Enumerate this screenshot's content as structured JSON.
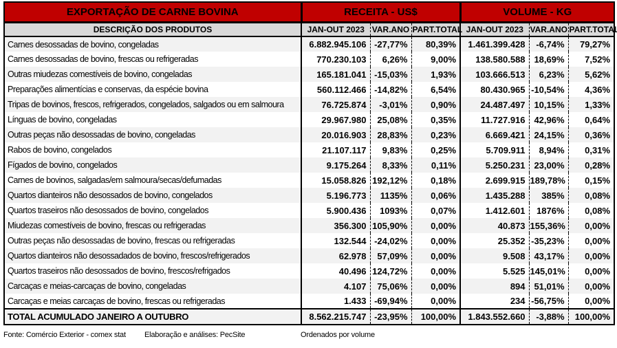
{
  "colors": {
    "header_red": "#C00000",
    "subheader_gray": "#D9D9D9",
    "stripe_gray": "#F2F2F2",
    "border_black": "#000000"
  },
  "header": {
    "title": "EXPORTAÇÃO DE CARNE BOVINA",
    "receita_group": "RECEITA - US$",
    "volume_group": "VOLUME - KG",
    "col_desc": "DESCRIÇÃO DOS PRODUTOS",
    "col_period": "JAN-OUT 2023",
    "col_var": "VAR.ANO",
    "col_part": "PART.TOTAL"
  },
  "rows": [
    {
      "desc": "Carnes desossadas de bovino, congeladas",
      "r_value": "6.882.945.106",
      "r_var": "-27,77%",
      "r_part": "80,39%",
      "v_value": "1.461.399.428",
      "v_var": "-6,74%",
      "v_part": "79,27%"
    },
    {
      "desc": "Carnes desossadas de bovino, frescas ou refrigeradas",
      "r_value": "770.230.103",
      "r_var": "6,26%",
      "r_part": "9,00%",
      "v_value": "138.580.588",
      "v_var": "18,69%",
      "v_part": "7,52%"
    },
    {
      "desc": "Outras miudezas comestíveis de bovino, congeladas",
      "r_value": "165.181.041",
      "r_var": "-15,03%",
      "r_part": "1,93%",
      "v_value": "103.666.513",
      "v_var": "6,23%",
      "v_part": "5,62%"
    },
    {
      "desc": "Preparações alimentícias e conservas, da espécie bovina",
      "r_value": "560.112.466",
      "r_var": "-14,82%",
      "r_part": "6,54%",
      "v_value": "80.430.965",
      "v_var": "-10,54%",
      "v_part": "4,36%"
    },
    {
      "desc": "Tripas de bovinos, frescos, refrigerados, congelados, salgados ou em salmoura",
      "r_value": "76.725.874",
      "r_var": "-3,01%",
      "r_part": "0,90%",
      "v_value": "24.487.497",
      "v_var": "10,15%",
      "v_part": "1,33%"
    },
    {
      "desc": "Línguas de bovino, congeladas",
      "r_value": "29.967.980",
      "r_var": "25,08%",
      "r_part": "0,35%",
      "v_value": "11.727.916",
      "v_var": "42,96%",
      "v_part": "0,64%"
    },
    {
      "desc": "Outras peças não desossadas de bovino, congeladas",
      "r_value": "20.016.903",
      "r_var": "28,83%",
      "r_part": "0,23%",
      "v_value": "6.669.421",
      "v_var": "24,15%",
      "v_part": "0,36%"
    },
    {
      "desc": "Rabos de bovino, congelados",
      "r_value": "21.107.117",
      "r_var": "9,83%",
      "r_part": "0,25%",
      "v_value": "5.709.911",
      "v_var": "8,94%",
      "v_part": "0,31%"
    },
    {
      "desc": "Fígados de bovino, congelados",
      "r_value": "9.175.264",
      "r_var": "8,33%",
      "r_part": "0,11%",
      "v_value": "5.250.231",
      "v_var": "23,00%",
      "v_part": "0,28%"
    },
    {
      "desc": "Carnes de bovinos, salgadas/em salmoura/secas/defumadas",
      "r_value": "15.058.826",
      "r_var": "192,12%",
      "r_part": "0,18%",
      "v_value": "2.699.915",
      "v_var": "189,78%",
      "v_part": "0,15%"
    },
    {
      "desc": "Quartos dianteiros não desossados de bovino, congelados",
      "r_value": "5.196.773",
      "r_var": "1135%",
      "r_part": "0,06%",
      "v_value": "1.435.288",
      "v_var": "385%",
      "v_part": "0,08%"
    },
    {
      "desc": "Quartos traseiros não desossados de bovino, congelados",
      "r_value": "5.900.436",
      "r_var": "1093%",
      "r_part": "0,07%",
      "v_value": "1.412.601",
      "v_var": "1876%",
      "v_part": "0,08%"
    },
    {
      "desc": "Miudezas comestíveis de bovino, frescas ou refrigeradas",
      "r_value": "356.300",
      "r_var": "105,90%",
      "r_part": "0,00%",
      "v_value": "40.873",
      "v_var": "155,36%",
      "v_part": "0,00%"
    },
    {
      "desc": "Outras peças não desossadas de bovino, frescas ou refrigeradas",
      "r_value": "132.544",
      "r_var": "-24,02%",
      "r_part": "0,00%",
      "v_value": "25.352",
      "v_var": "-35,23%",
      "v_part": "0,00%"
    },
    {
      "desc": "Quartos dianteiros não desossadados de bovino, frescos/refrigerados",
      "r_value": "62.978",
      "r_var": "57,09%",
      "r_part": "0,00%",
      "v_value": "9.508",
      "v_var": "43,17%",
      "v_part": "0,00%"
    },
    {
      "desc": "Quartos traseiros não desossados de bovino, frescos/refrigados",
      "r_value": "40.496",
      "r_var": "124,72%",
      "r_part": "0,00%",
      "v_value": "5.525",
      "v_var": "145,01%",
      "v_part": "0,00%"
    },
    {
      "desc": "Carcaças e meias-carcaças de bovino, congeladas",
      "r_value": "4.107",
      "r_var": "75,06%",
      "r_part": "0,00%",
      "v_value": "894",
      "v_var": "51,01%",
      "v_part": "0,00%"
    },
    {
      "desc": "Carcaças e meias carcaças de bovino, frescas ou refrigeradas",
      "r_value": "1.433",
      "r_var": "-69,94%",
      "r_part": "0,00%",
      "v_value": "234",
      "v_var": "-56,75%",
      "v_part": "0,00%"
    }
  ],
  "total": {
    "label": "TOTAL ACUMULADO JANEIRO A OUTUBRO",
    "r_value": "8.562.215.747",
    "r_var": "-23,95%",
    "r_part": "100,00%",
    "v_value": "1.843.552.660",
    "v_var": "-3,88%",
    "v_part": "100,00%"
  },
  "footer": {
    "source": "Fonte: Comércio Exterior - comex stat",
    "elaboration": "Elaboração e análises: PecSite",
    "order": "Ordenados por volume"
  }
}
